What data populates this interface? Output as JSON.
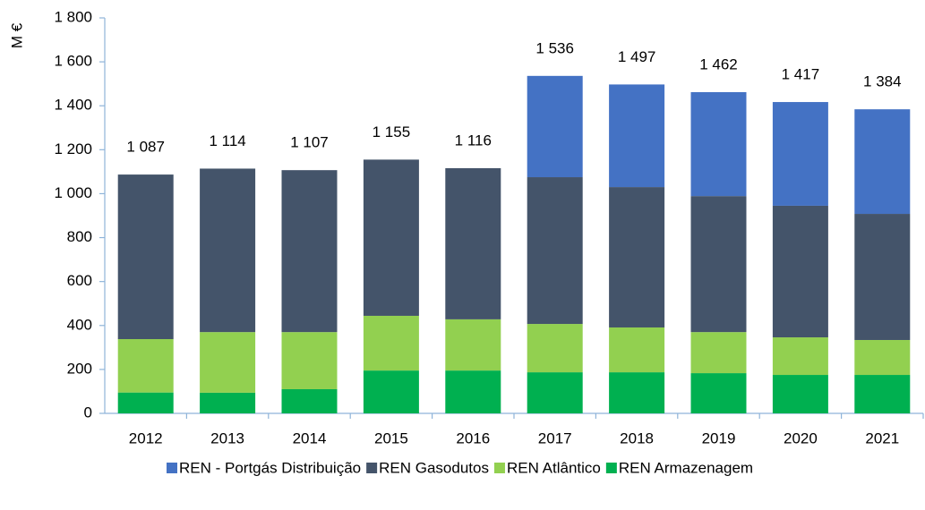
{
  "chart_data": {
    "type": "stacked_bar",
    "y_label": "M €",
    "categories": [
      "2012",
      "2013",
      "2014",
      "2015",
      "2016",
      "2017",
      "2018",
      "2019",
      "2020",
      "2021"
    ],
    "series": [
      {
        "name": "REN - Portgás Distribuição",
        "color": "#4472c4",
        "values": [
          null,
          null,
          null,
          null,
          null,
          461,
          467,
          473,
          472,
          476
        ]
      },
      {
        "name": "REN Gasodutos",
        "color": "#44546a",
        "values": [
          749,
          744,
          737,
          711,
          688,
          668,
          639,
          619,
          599,
          574
        ]
      },
      {
        "name": "REN Atlântico",
        "color": "#92d050",
        "values": [
          243,
          276,
          260,
          249,
          233,
          220,
          204,
          187,
          171,
          159
        ]
      },
      {
        "name": "REN Armazenagem",
        "color": "#00b050",
        "values": [
          95,
          94,
          110,
          195,
          195,
          187,
          187,
          183,
          175,
          175
        ]
      }
    ],
    "totals": [
      1087,
      1114,
      1107,
      1155,
      1116,
      1536,
      1497,
      1462,
      1417,
      1384
    ],
    "total_labels": [
      "1 087",
      "1 114",
      "1 107",
      "1 155",
      "1 116",
      "1 536",
      "1 497",
      "1 462",
      "1 417",
      "1 384"
    ],
    "ylim": [
      0,
      1800
    ],
    "yticks": [
      0,
      200,
      400,
      600,
      800,
      {
        "value": 1000,
        "label": "1 000"
      },
      {
        "value": 1200,
        "label": "1 200"
      },
      {
        "value": 1400,
        "label": "1 400"
      },
      {
        "value": 1600,
        "label": "1 600"
      },
      {
        "value": 1800,
        "label": "1 800"
      }
    ],
    "grid": false,
    "legend": "bottom"
  }
}
